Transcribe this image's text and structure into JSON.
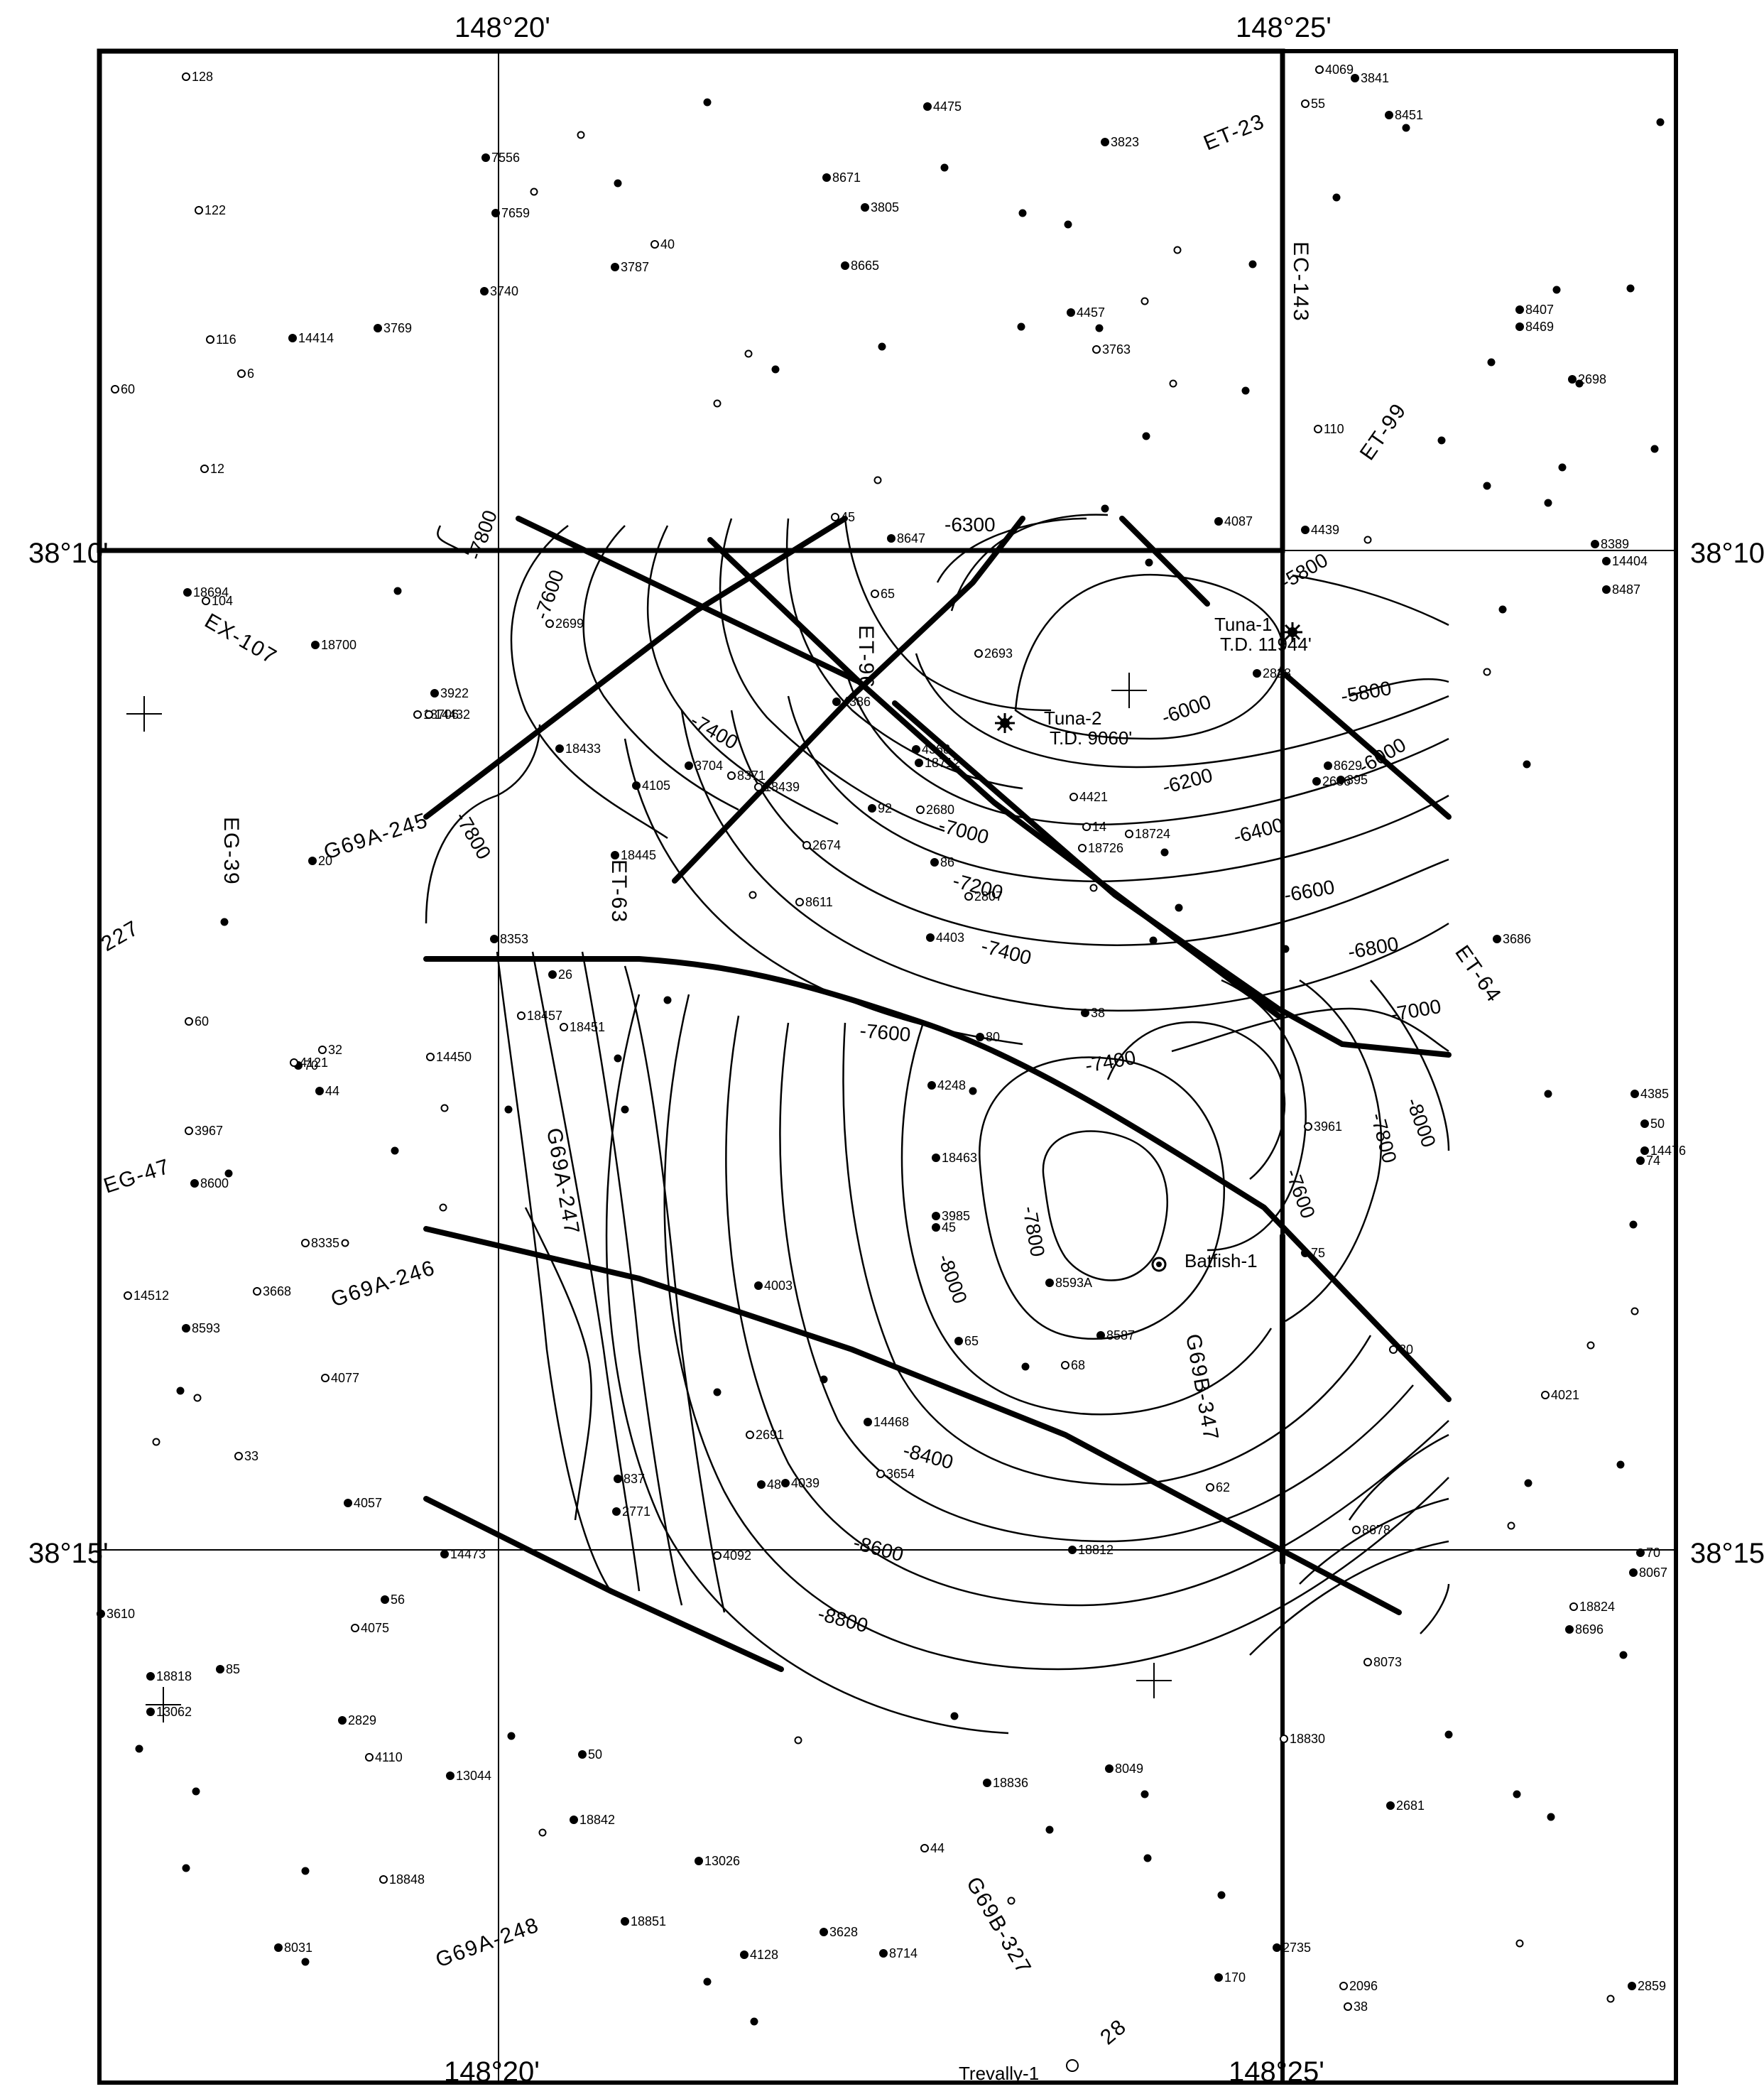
{
  "map": {
    "coords": {
      "top_left": "148°20'",
      "top_right": "148°25'",
      "bottom_left": "148°20'",
      "bottom_right": "148°25'",
      "left_upper": "38°10'",
      "left_lower": "38°15'",
      "right_upper": "38°10'",
      "right_lower": "38°15'"
    },
    "named_wells": [
      {
        "label": "Tuna-1",
        "sub": "T.D. 11944'"
      },
      {
        "label": "Tuna-2",
        "sub": "T.D. 9060'"
      },
      {
        "label": "Batfish-1",
        "sub": ""
      },
      {
        "label": "Trevally-1",
        "sub": ""
      }
    ],
    "seismic_lines": [
      "ET-23",
      "EC-143",
      "ET-99",
      "EX-107",
      "EG-39",
      "G69A-245",
      "ET-63",
      "ET-96",
      "ET-64",
      "EG-47",
      "G69A-246",
      "G69A-247",
      "G69B-347",
      "G69A-248",
      "G69B-327",
      "28",
      "227"
    ],
    "contour_labels": [
      "-6300",
      "-5800",
      "-5800",
      "-6000",
      "-6000",
      "-6200",
      "-6400",
      "-6600",
      "-6800",
      "-7000",
      "-7000",
      "-7200",
      "-7400",
      "-7400",
      "-7400",
      "-7600",
      "-7600",
      "-7600",
      "-7800",
      "-7800",
      "-7800",
      "-7800",
      "-8000",
      "-8000",
      "-8400",
      "-8600",
      "-8800"
    ],
    "well_numbers": [
      "128",
      "7556",
      "4475",
      "3823",
      "4069",
      "3841",
      "55",
      "8451",
      "122",
      "7659",
      "8671",
      "3805",
      "40",
      "3787",
      "8665",
      "3740",
      "116",
      "14414",
      "3769",
      "4457",
      "8407",
      "8469",
      "6",
      "3763",
      "60",
      "12",
      "110",
      "4087",
      "4439",
      "8389",
      "8487",
      "14404",
      "18694",
      "104",
      "8647",
      "45",
      "65",
      "2699",
      "2698",
      "18700",
      "3922",
      "18706",
      "14432",
      "2693",
      "2828",
      "4386",
      "4368",
      "18712",
      "18433",
      "3704",
      "8371",
      "4105",
      "4421",
      "2686",
      "8629",
      "395",
      "18439",
      "92",
      "2680",
      "18724",
      "18726",
      "14",
      "86",
      "2674",
      "18445",
      "26",
      "20",
      "2807",
      "4403",
      "3686",
      "8353",
      "18451",
      "38",
      "70",
      "32",
      "14450",
      "44",
      "18457",
      "80",
      "8611",
      "60",
      "4121",
      "4248",
      "3961",
      "4385",
      "50",
      "14476",
      "3967",
      "18463",
      "74",
      "8600",
      "8335",
      "3985",
      "45",
      "75",
      "14512",
      "3668",
      "8593",
      "4003",
      "8593A",
      "8587",
      "65",
      "68",
      "30",
      "4077",
      "4021",
      "2691",
      "14468",
      "3654",
      "837",
      "4039",
      "48",
      "2771",
      "33",
      "62",
      "8678",
      "4057",
      "14473",
      "4092",
      "18812",
      "56",
      "4075",
      "3610",
      "18818",
      "13062",
      "85",
      "8073",
      "70",
      "8067",
      "18824",
      "8696",
      "2829",
      "50",
      "18830",
      "4110",
      "13044",
      "8049",
      "18836",
      "2681",
      "18842",
      "44",
      "13026",
      "18848",
      "18851",
      "3628",
      "8714",
      "8031",
      "4128",
      "170",
      "2735",
      "2096",
      "38",
      "2859"
    ]
  }
}
